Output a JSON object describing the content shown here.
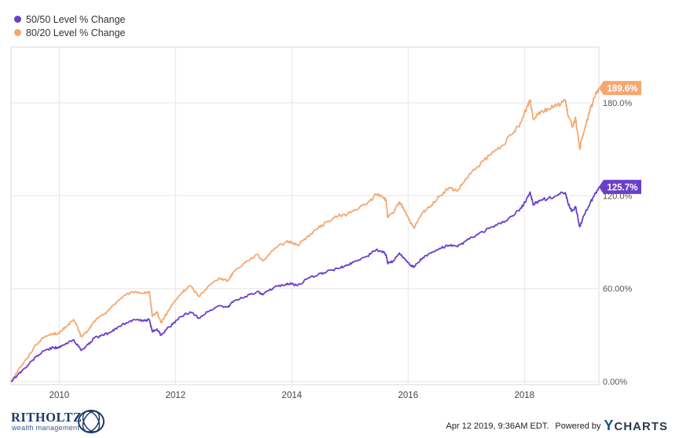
{
  "chart_data": {
    "type": "line",
    "x_axis": {
      "min": 2009.17,
      "max": 2019.28,
      "ticks": [
        2010,
        2012,
        2014,
        2016,
        2018
      ],
      "tick_labels": [
        "2010",
        "2012",
        "2014",
        "2016",
        "2018"
      ]
    },
    "y_axis": {
      "min": -2,
      "max": 216,
      "ticks": [
        0,
        60,
        120,
        180
      ],
      "tick_labels": [
        "0.00%",
        "60.00%",
        "120.0%",
        "180.0%"
      ],
      "position": "right"
    },
    "grid": true,
    "legend_position": "top-left",
    "series": [
      {
        "name": "50/50 Level % Change",
        "color": "#6a3fc8",
        "end_label": "125.7%",
        "points": [
          [
            2009.17,
            0
          ],
          [
            2009.3,
            5
          ],
          [
            2009.45,
            10
          ],
          [
            2009.6,
            16
          ],
          [
            2009.75,
            20
          ],
          [
            2009.9,
            22
          ],
          [
            2010.0,
            22
          ],
          [
            2010.1,
            24
          ],
          [
            2010.25,
            27
          ],
          [
            2010.38,
            20
          ],
          [
            2010.5,
            24
          ],
          [
            2010.6,
            28
          ],
          [
            2010.75,
            30
          ],
          [
            2010.9,
            32
          ],
          [
            2011.0,
            35
          ],
          [
            2011.15,
            38
          ],
          [
            2011.3,
            40
          ],
          [
            2011.45,
            39
          ],
          [
            2011.55,
            40
          ],
          [
            2011.6,
            32
          ],
          [
            2011.68,
            34
          ],
          [
            2011.75,
            30
          ],
          [
            2011.85,
            34
          ],
          [
            2011.95,
            37
          ],
          [
            2012.1,
            42
          ],
          [
            2012.25,
            45
          ],
          [
            2012.4,
            41
          ],
          [
            2012.55,
            45
          ],
          [
            2012.75,
            49
          ],
          [
            2012.9,
            48
          ],
          [
            2013.0,
            52
          ],
          [
            2013.2,
            55
          ],
          [
            2013.4,
            58
          ],
          [
            2013.5,
            56
          ],
          [
            2013.7,
            61
          ],
          [
            2013.9,
            63
          ],
          [
            2014.0,
            63
          ],
          [
            2014.1,
            62
          ],
          [
            2014.25,
            66
          ],
          [
            2014.45,
            69
          ],
          [
            2014.6,
            71
          ],
          [
            2014.8,
            73
          ],
          [
            2014.95,
            75
          ],
          [
            2015.1,
            78
          ],
          [
            2015.3,
            81
          ],
          [
            2015.45,
            85
          ],
          [
            2015.55,
            84
          ],
          [
            2015.62,
            82
          ],
          [
            2015.65,
            76
          ],
          [
            2015.75,
            78
          ],
          [
            2015.85,
            83
          ],
          [
            2015.95,
            79
          ],
          [
            2016.05,
            75
          ],
          [
            2016.1,
            74
          ],
          [
            2016.25,
            80
          ],
          [
            2016.4,
            83
          ],
          [
            2016.55,
            86
          ],
          [
            2016.7,
            88
          ],
          [
            2016.85,
            87
          ],
          [
            2017.0,
            91
          ],
          [
            2017.2,
            95
          ],
          [
            2017.4,
            99
          ],
          [
            2017.6,
            102
          ],
          [
            2017.8,
            107
          ],
          [
            2017.95,
            112
          ],
          [
            2018.05,
            119
          ],
          [
            2018.1,
            122
          ],
          [
            2018.15,
            114
          ],
          [
            2018.25,
            117
          ],
          [
            2018.4,
            118
          ],
          [
            2018.55,
            120
          ],
          [
            2018.7,
            122
          ],
          [
            2018.75,
            115
          ],
          [
            2018.82,
            110
          ],
          [
            2018.88,
            113
          ],
          [
            2018.95,
            100
          ],
          [
            2019.0,
            105
          ],
          [
            2019.1,
            113
          ],
          [
            2019.2,
            120
          ],
          [
            2019.28,
            125.7
          ]
        ]
      },
      {
        "name": "80/20 Level % Change",
        "color": "#f4a870",
        "end_label": "189.6%",
        "points": [
          [
            2009.17,
            0
          ],
          [
            2009.3,
            8
          ],
          [
            2009.45,
            15
          ],
          [
            2009.6,
            24
          ],
          [
            2009.75,
            29
          ],
          [
            2009.9,
            31
          ],
          [
            2010.0,
            31
          ],
          [
            2010.1,
            35
          ],
          [
            2010.25,
            40
          ],
          [
            2010.38,
            29
          ],
          [
            2010.5,
            33
          ],
          [
            2010.6,
            39
          ],
          [
            2010.75,
            43
          ],
          [
            2010.9,
            48
          ],
          [
            2011.0,
            52
          ],
          [
            2011.15,
            56
          ],
          [
            2011.3,
            58
          ],
          [
            2011.45,
            57
          ],
          [
            2011.55,
            58
          ],
          [
            2011.6,
            42
          ],
          [
            2011.68,
            45
          ],
          [
            2011.75,
            38
          ],
          [
            2011.85,
            44
          ],
          [
            2011.95,
            50
          ],
          [
            2012.1,
            57
          ],
          [
            2012.25,
            62
          ],
          [
            2012.4,
            55
          ],
          [
            2012.55,
            61
          ],
          [
            2012.75,
            67
          ],
          [
            2012.9,
            65
          ],
          [
            2013.0,
            71
          ],
          [
            2013.2,
            77
          ],
          [
            2013.4,
            82
          ],
          [
            2013.5,
            78
          ],
          [
            2013.7,
            86
          ],
          [
            2013.9,
            90
          ],
          [
            2014.0,
            90
          ],
          [
            2014.1,
            88
          ],
          [
            2014.25,
            93
          ],
          [
            2014.45,
            99
          ],
          [
            2014.6,
            103
          ],
          [
            2014.8,
            107
          ],
          [
            2014.95,
            108
          ],
          [
            2015.1,
            111
          ],
          [
            2015.3,
            115
          ],
          [
            2015.45,
            121
          ],
          [
            2015.55,
            120
          ],
          [
            2015.62,
            117
          ],
          [
            2015.65,
            106
          ],
          [
            2015.75,
            109
          ],
          [
            2015.85,
            116
          ],
          [
            2015.95,
            110
          ],
          [
            2016.05,
            102
          ],
          [
            2016.1,
            99
          ],
          [
            2016.25,
            109
          ],
          [
            2016.4,
            114
          ],
          [
            2016.55,
            120
          ],
          [
            2016.7,
            125
          ],
          [
            2016.85,
            123
          ],
          [
            2017.0,
            131
          ],
          [
            2017.2,
            139
          ],
          [
            2017.4,
            146
          ],
          [
            2017.6,
            152
          ],
          [
            2017.8,
            160
          ],
          [
            2017.95,
            168
          ],
          [
            2018.05,
            178
          ],
          [
            2018.1,
            182
          ],
          [
            2018.15,
            170
          ],
          [
            2018.25,
            174
          ],
          [
            2018.4,
            176
          ],
          [
            2018.55,
            178
          ],
          [
            2018.7,
            182
          ],
          [
            2018.75,
            172
          ],
          [
            2018.82,
            165
          ],
          [
            2018.88,
            170
          ],
          [
            2018.95,
            150
          ],
          [
            2019.0,
            158
          ],
          [
            2019.1,
            172
          ],
          [
            2019.2,
            183
          ],
          [
            2019.28,
            189.6
          ]
        ]
      }
    ]
  },
  "legend": {
    "items": [
      {
        "label": "50/50 Level % Change",
        "color": "#6a3fc8"
      },
      {
        "label": "80/20 Level % Change",
        "color": "#f4a870"
      }
    ]
  },
  "footer": {
    "brand_name": "RITHOLTZ",
    "brand_sub": "wealth management",
    "timestamp": "Apr 12 2019, 9:36AM EDT.",
    "powered_by": "Powered by",
    "ycharts_y": "Y",
    "ycharts_rest": "CHARTS"
  }
}
